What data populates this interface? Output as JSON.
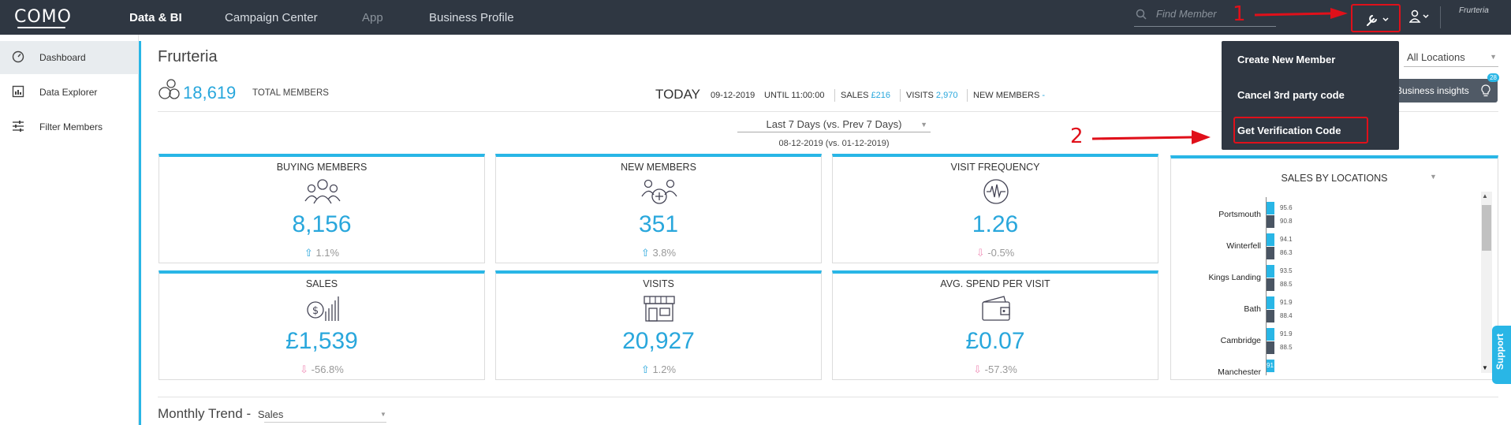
{
  "topnav": {
    "logo": "COMO",
    "items": [
      {
        "label": "Data & BI"
      },
      {
        "label": "Campaign Center"
      },
      {
        "label": "App"
      },
      {
        "label": "Business Profile"
      }
    ],
    "search_placeholder": "Find Member",
    "brand": "Frurteria"
  },
  "annotations": {
    "one": "1",
    "two": "2"
  },
  "sidebar": {
    "items": [
      {
        "label": "Dashboard",
        "icon": "dashboard-icon"
      },
      {
        "label": "Data Explorer",
        "icon": "data-explorer-icon"
      },
      {
        "label": "Filter Members",
        "icon": "sliders-icon"
      }
    ]
  },
  "header": {
    "title": "Frurteria",
    "total_members": "18,619",
    "total_members_label": "TOTAL MEMBERS",
    "today_label": "TODAY",
    "date": "09-12-2019",
    "until": "UNTIL 11:00:00",
    "sales_label": "SALES",
    "sales_value": "£216",
    "visits_label": "VISITS",
    "visits_value": "2,970",
    "new_members_label": "NEW MEMBERS",
    "new_members_value": "-",
    "locations": "All Locations",
    "insights": "Business insights",
    "insights_count": "28"
  },
  "period": {
    "selected": "Last 7 Days (vs. Prev 7 Days)",
    "range": "08-12-2019 (vs. 01-12-2019)"
  },
  "cards": [
    {
      "title": "BUYING MEMBERS",
      "value": "8,156",
      "change": "1.1%",
      "direction": "up"
    },
    {
      "title": "NEW MEMBERS",
      "value": "351",
      "change": "3.8%",
      "direction": "up"
    },
    {
      "title": "VISIT FREQUENCY",
      "value": "1.26",
      "change": "-0.5%",
      "direction": "down"
    },
    {
      "title": "SALES",
      "value": "£1,539",
      "change": "-56.8%",
      "direction": "down"
    },
    {
      "title": "VISITS",
      "value": "20,927",
      "change": "1.2%",
      "direction": "up"
    },
    {
      "title": "AVG. SPEND PER VISIT",
      "value": "£0.07",
      "change": "-57.3%",
      "direction": "down"
    }
  ],
  "sales_by_locations": {
    "title": "SALES BY LOCATIONS",
    "colors": {
      "current": "#29b6e6",
      "previous": "#4a5563"
    }
  },
  "chart_data": {
    "type": "bar",
    "title": "SALES BY LOCATIONS",
    "categories": [
      "Portsmouth",
      "Winterfell",
      "Kings Landing",
      "Bath",
      "Cambridge",
      "Manchester"
    ],
    "series": [
      {
        "values": [
          95.6,
          94.1,
          93.5,
          91.9,
          91.9,
          91
        ]
      },
      {
        "values": [
          90.8,
          86.3,
          88.5,
          88.4,
          88.5,
          null
        ]
      }
    ]
  },
  "menu": {
    "items": [
      {
        "label": "Create New Member"
      },
      {
        "label": "Cancel 3rd party code"
      },
      {
        "label": "Get Verification Code"
      }
    ]
  },
  "support": "Support",
  "monthly": {
    "title": "Monthly Trend -",
    "selected": "Sales"
  }
}
